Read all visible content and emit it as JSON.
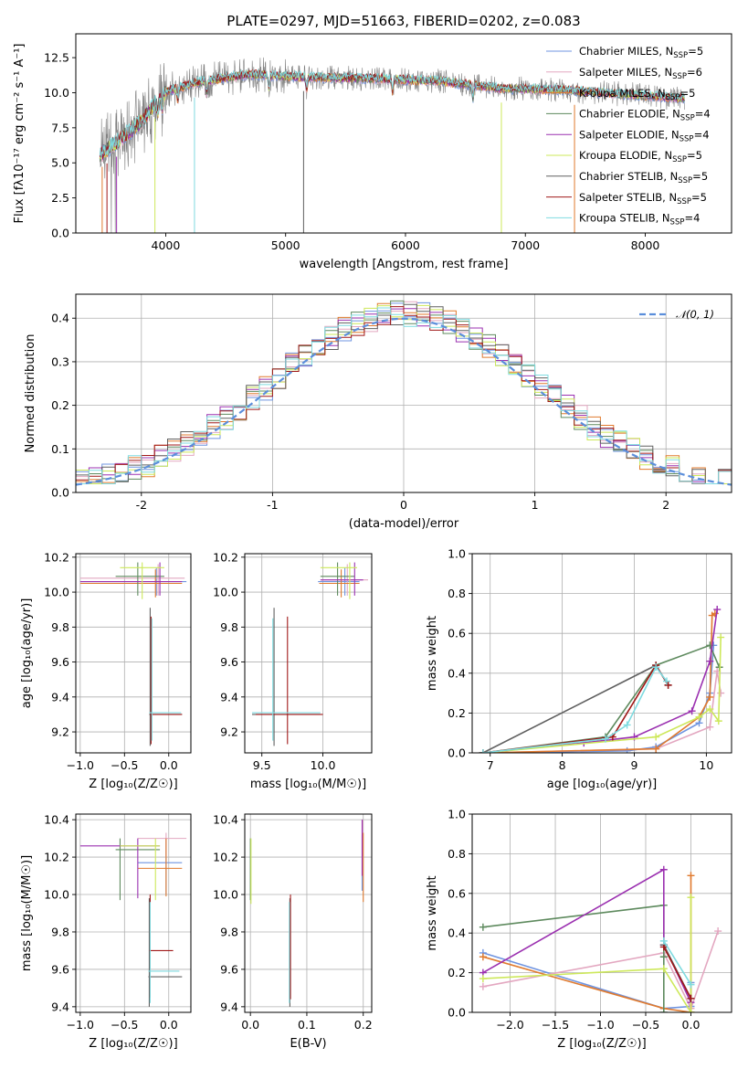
{
  "title": "PLATE=0297, MJD=51663, FIBERID=0202, z=0.083",
  "colors": {
    "Chabrier MILES": "#6f94e0",
    "Salpeter MILES": "#e3a7c0",
    "Kroupa MILES": "#e07a2e",
    "Chabrier ELODIE": "#5e8a5e",
    "Salpeter ELODIE": "#9b30b0",
    "Kroupa ELODIE": "#cde85a",
    "Chabrier STELIB": "#606060",
    "Salpeter STELIB": "#a01818",
    "Kroupa STELIB": "#7fdbe0",
    "normal": "#5b8edb",
    "grid": "#b0b0b0"
  },
  "legend_names": [
    "Chabrier MILES",
    "Salpeter MILES",
    "Kroupa MILES",
    "Chabrier ELODIE",
    "Salpeter ELODIE",
    "Kroupa ELODIE",
    "Chabrier STELIB",
    "Salpeter STELIB",
    "Kroupa STELIB"
  ],
  "legend_nssp": [
    5,
    6,
    5,
    4,
    4,
    5,
    5,
    5,
    4
  ],
  "chart_data": [
    {
      "id": "spectrum",
      "type": "line",
      "title": "PLATE=0297, MJD=51663, FIBERID=0202, z=0.083",
      "xlabel": "wavelength [Angstrom, rest frame]",
      "ylabel": "Flux [fλ10⁻¹⁷ erg cm⁻² s⁻¹ A⁻¹]",
      "xlim": [
        3250,
        8720
      ],
      "ylim": [
        0,
        14.2
      ],
      "xticks": [
        4000,
        5000,
        6000,
        7000,
        8000
      ],
      "yticks": [
        0.0,
        2.5,
        5.0,
        7.5,
        10.0,
        12.5
      ],
      "ytick_labels": [
        "0.0",
        "2.5",
        "5.0",
        "7.5",
        "10.0",
        "12.5"
      ],
      "legend_position": "upper right",
      "data_range": [
        3450,
        8330
      ],
      "model_shape": {
        "wavelength": [
          3450,
          3600,
          3800,
          4000,
          4300,
          4700,
          5200,
          5800,
          6300,
          6800,
          7300,
          7800,
          8330
        ],
        "flux": [
          5.6,
          6.5,
          8.0,
          10.1,
          10.8,
          11.3,
          11.1,
          11.0,
          10.8,
          10.3,
          10.2,
          9.9,
          9.6
        ]
      },
      "absorption_lines": [
        3933,
        3968,
        4101,
        4340,
        4861,
        5175,
        5892,
        6563
      ],
      "dropouts": [
        3470,
        3510,
        3590,
        3910,
        4240,
        5150,
        6800,
        7410
      ]
    },
    {
      "id": "residuals",
      "type": "histogram",
      "xlabel": "(data-model)/error",
      "ylabel": "Normed distribution",
      "xlim": [
        -2.5,
        2.5
      ],
      "ylim": [
        0,
        0.455
      ],
      "xticks": [
        -2,
        -1,
        0,
        1,
        2
      ],
      "yticks": [
        0.0,
        0.1,
        0.2,
        0.3,
        0.4
      ],
      "ytick_labels": [
        "0.0",
        "0.1",
        "0.2",
        "0.3",
        "0.4"
      ],
      "bin_width": 0.1,
      "reference_curve": "𝒩(0, 1)",
      "legend_position": "upper right"
    },
    {
      "id": "age-vs-Z",
      "type": "errorbar",
      "xlabel": "Z [log₁₀(Z/Z☉)]",
      "ylabel": "age  [log₁₀(age/yr)]",
      "xlim": [
        -1.05,
        0.25
      ],
      "ylim": [
        9.08,
        10.22
      ],
      "xticks": [
        -1.0,
        -0.5,
        0.0
      ],
      "xtick_labels": [
        "−1.0",
        "−0.5",
        "0.0"
      ],
      "yticks": [
        9.2,
        9.4,
        9.6,
        9.8,
        10.0,
        10.2
      ],
      "ytick_labels": [
        "9.2",
        "9.4",
        "9.6",
        "9.8",
        "10.0",
        "10.2"
      ],
      "points": [
        {
          "model": "Chabrier MILES",
          "x": -0.14,
          "y": 10.06,
          "x_range": [
            -1.0,
            0.2
          ],
          "y_range": [
            9.98,
            10.14
          ]
        },
        {
          "model": "Salpeter MILES",
          "x": -0.12,
          "y": 10.08,
          "x_range": [
            -1.0,
            0.18
          ],
          "y_range": [
            9.98,
            10.16
          ]
        },
        {
          "model": "Kroupa MILES",
          "x": -0.15,
          "y": 10.05,
          "x_range": [
            -1.0,
            0.15
          ],
          "y_range": [
            9.97,
            10.13
          ]
        },
        {
          "model": "Chabrier ELODIE",
          "x": -0.35,
          "y": 10.09,
          "x_range": [
            -0.6,
            -0.05
          ],
          "y_range": [
            9.98,
            10.17
          ]
        },
        {
          "model": "Salpeter ELODIE",
          "x": -0.1,
          "y": 10.06,
          "x_range": [
            -1.0,
            0.15
          ],
          "y_range": [
            9.98,
            10.17
          ]
        },
        {
          "model": "Kroupa ELODIE",
          "x": -0.3,
          "y": 10.14,
          "x_range": [
            -0.55,
            -0.05
          ],
          "y_range": [
            9.96,
            10.17
          ]
        },
        {
          "model": "Chabrier STELIB",
          "x": -0.21,
          "y": 9.3,
          "x_range": [
            -0.22,
            0.15
          ],
          "y_range": [
            9.12,
            9.91
          ]
        },
        {
          "model": "Salpeter STELIB",
          "x": -0.2,
          "y": 9.3,
          "x_range": [
            -0.21,
            0.15
          ],
          "y_range": [
            9.13,
            9.86
          ]
        },
        {
          "model": "Kroupa STELIB",
          "x": -0.19,
          "y": 9.31,
          "x_range": [
            -0.22,
            0.14
          ],
          "y_range": [
            9.15,
            9.85
          ]
        }
      ]
    },
    {
      "id": "age-vs-mass",
      "type": "errorbar",
      "xlabel": "mass [log₁₀(M/M☉)]",
      "ylabel": "",
      "xlim": [
        9.36,
        10.4
      ],
      "ylim": [
        9.08,
        10.22
      ],
      "xticks": [
        9.5,
        10.0
      ],
      "xtick_labels": [
        "9.5",
        "10.0"
      ],
      "yticks": [
        9.2,
        9.4,
        9.6,
        9.8,
        10.0,
        10.2
      ],
      "ytick_labels": [
        "9.2",
        "9.4",
        "9.6",
        "9.8",
        "10.0",
        "10.2"
      ],
      "points": [
        {
          "model": "Chabrier MILES",
          "x": 10.18,
          "y": 10.06,
          "x_range": [
            9.96,
            10.3
          ],
          "y_range": [
            9.98,
            10.14
          ]
        },
        {
          "model": "Salpeter MILES",
          "x": 10.2,
          "y": 10.07,
          "x_range": [
            9.98,
            10.37
          ],
          "y_range": [
            9.98,
            10.16
          ]
        },
        {
          "model": "Kroupa MILES",
          "x": 10.15,
          "y": 10.05,
          "x_range": [
            9.97,
            10.3
          ],
          "y_range": [
            9.97,
            10.13
          ]
        },
        {
          "model": "Chabrier ELODIE",
          "x": 10.12,
          "y": 10.09,
          "x_range": [
            9.98,
            10.26
          ],
          "y_range": [
            9.98,
            10.17
          ]
        },
        {
          "model": "Salpeter ELODIE",
          "x": 10.26,
          "y": 10.07,
          "x_range": [
            9.98,
            10.33
          ],
          "y_range": [
            9.98,
            10.17
          ]
        },
        {
          "model": "Kroupa ELODIE",
          "x": 10.22,
          "y": 10.14,
          "x_range": [
            9.98,
            10.28
          ],
          "y_range": [
            9.96,
            10.17
          ]
        },
        {
          "model": "Chabrier STELIB",
          "x": 9.6,
          "y": 9.3,
          "x_range": [
            9.42,
            9.98
          ],
          "y_range": [
            9.12,
            9.91
          ]
        },
        {
          "model": "Salpeter STELIB",
          "x": 9.71,
          "y": 9.3,
          "x_range": [
            9.45,
            10.0
          ],
          "y_range": [
            9.13,
            9.86
          ]
        },
        {
          "model": "Kroupa STELIB",
          "x": 9.59,
          "y": 9.31,
          "x_range": [
            9.42,
            9.98
          ],
          "y_range": [
            9.15,
            9.85
          ]
        }
      ]
    },
    {
      "id": "mass-weight-vs-age",
      "type": "line",
      "xlabel": "age  [log₁₀(age/yr)]",
      "ylabel": "mass weight",
      "xlim": [
        6.75,
        10.35
      ],
      "ylim": [
        0,
        1.0
      ],
      "xticks": [
        7,
        8,
        9,
        10
      ],
      "yticks": [
        0.0,
        0.2,
        0.4,
        0.6,
        0.8,
        1.0
      ],
      "ytick_labels": [
        "0.0",
        "0.2",
        "0.4",
        "0.6",
        "0.8",
        "1.0"
      ],
      "series": [
        {
          "name": "Chabrier MILES",
          "x": [
            6.9,
            8.9,
            9.3,
            9.9,
            10.05,
            10.1
          ],
          "y": [
            0.0,
            0.01,
            0.03,
            0.15,
            0.3,
            0.54
          ]
        },
        {
          "name": "Salpeter MILES",
          "x": [
            6.9,
            9.3,
            10.05,
            10.15,
            10.2
          ],
          "y": [
            0.0,
            0.02,
            0.13,
            0.41,
            0.3
          ]
        },
        {
          "name": "Kroupa MILES",
          "x": [
            6.9,
            9.3,
            9.9,
            10.05,
            10.08,
            10.12
          ],
          "y": [
            0.0,
            0.02,
            0.18,
            0.28,
            0.69,
            0.7
          ]
        },
        {
          "name": "Chabrier ELODIE",
          "x": [
            6.9,
            8.6,
            9.3,
            10.05,
            10.18
          ],
          "y": [
            0.0,
            0.08,
            0.44,
            0.54,
            0.43
          ]
        },
        {
          "name": "Salpeter ELODIE",
          "x": [
            6.9,
            8.3,
            9.0,
            9.8,
            10.05,
            10.15
          ],
          "y": [
            0.0,
            0.05,
            0.08,
            0.21,
            0.46,
            0.72
          ]
        },
        {
          "name": "Kroupa ELODIE",
          "x": [
            6.9,
            9.3,
            9.9,
            10.05,
            10.17,
            10.2
          ],
          "y": [
            0.0,
            0.08,
            0.18,
            0.22,
            0.16,
            0.58
          ]
        },
        {
          "name": "Chabrier STELIB",
          "x": [
            6.9,
            9.3,
            9.47
          ],
          "y": [
            0.0,
            0.44,
            0.34
          ]
        },
        {
          "name": "Salpeter STELIB",
          "x": [
            6.9,
            8.7,
            9.3,
            9.47
          ],
          "y": [
            0.0,
            0.08,
            0.44,
            0.34
          ]
        },
        {
          "name": "Kroupa STELIB",
          "x": [
            6.9,
            8.6,
            8.9,
            9.3,
            9.45
          ],
          "y": [
            0.0,
            0.07,
            0.14,
            0.43,
            0.36
          ]
        }
      ]
    },
    {
      "id": "mass-vs-Z",
      "type": "errorbar",
      "xlabel": "Z [log₁₀(Z/Z☉)]",
      "ylabel": "mass [log₁₀(M/M☉)]",
      "xlim": [
        -1.05,
        0.25
      ],
      "ylim": [
        9.37,
        10.43
      ],
      "xticks": [
        -1.0,
        -0.5,
        0.0
      ],
      "xtick_labels": [
        "−1.0",
        "−0.5",
        "0.0"
      ],
      "yticks": [
        9.4,
        9.6,
        9.8,
        10.0,
        10.2,
        10.4
      ],
      "ytick_labels": [
        "9.4",
        "9.6",
        "9.8",
        "10.0",
        "10.2",
        "10.4"
      ],
      "points": [
        {
          "model": "Chabrier MILES",
          "x": -0.03,
          "y": 10.17,
          "x_range": [
            -0.35,
            0.15
          ],
          "y_range": [
            10.0,
            10.3
          ]
        },
        {
          "model": "Salpeter MILES",
          "x": -0.03,
          "y": 10.3,
          "x_range": [
            -0.35,
            0.2
          ],
          "y_range": [
            10.2,
            10.33
          ]
        },
        {
          "model": "Kroupa MILES",
          "x": -0.03,
          "y": 10.14,
          "x_range": [
            -0.35,
            0.15
          ],
          "y_range": [
            9.99,
            10.3
          ]
        },
        {
          "model": "Chabrier ELODIE",
          "x": -0.55,
          "y": 10.24,
          "x_range": [
            -0.6,
            -0.1
          ],
          "y_range": [
            9.97,
            10.3
          ]
        },
        {
          "model": "Salpeter ELODIE",
          "x": -0.35,
          "y": 10.26,
          "x_range": [
            -1.0,
            -0.1
          ],
          "y_range": [
            9.98,
            10.3
          ]
        },
        {
          "model": "Kroupa ELODIE",
          "x": -0.15,
          "y": 10.26,
          "x_range": [
            -0.55,
            -0.1
          ],
          "y_range": [
            9.97,
            10.3
          ]
        },
        {
          "model": "Chabrier STELIB",
          "x": -0.22,
          "y": 9.56,
          "x_range": [
            -0.23,
            0.15
          ],
          "y_range": [
            9.4,
            9.98
          ]
        },
        {
          "model": "Salpeter STELIB",
          "x": -0.21,
          "y": 9.7,
          "x_range": [
            -0.22,
            0.05
          ],
          "y_range": [
            9.45,
            10.0
          ]
        },
        {
          "model": "Kroupa STELIB",
          "x": -0.21,
          "y": 9.59,
          "x_range": [
            -0.23,
            0.12
          ],
          "y_range": [
            9.42,
            9.96
          ]
        }
      ]
    },
    {
      "id": "mass-vs-EBV",
      "type": "errorbar",
      "xlabel": "E(B-V)",
      "ylabel": "",
      "xlim": [
        -0.01,
        0.215
      ],
      "ylim": [
        9.37,
        10.43
      ],
      "xticks": [
        0.0,
        0.1,
        0.2
      ],
      "xtick_labels": [
        "0.0",
        "0.1",
        "0.2"
      ],
      "yticks": [
        9.4,
        9.6,
        9.8,
        10.0,
        10.2,
        10.4
      ],
      "ytick_labels": [
        "9.4",
        "9.6",
        "9.8",
        "10.0",
        "10.2",
        "10.4"
      ],
      "points": [
        {
          "model": "Chabrier MILES",
          "x": 0.198,
          "y": 10.17,
          "y_range": [
            10.02,
            10.32
          ]
        },
        {
          "model": "Salpeter MILES",
          "x": 0.199,
          "y": 10.3,
          "y_range": [
            10.2,
            10.4
          ]
        },
        {
          "model": "Kroupa MILES",
          "x": 0.2,
          "y": 10.14,
          "y_range": [
            9.96,
            10.33
          ]
        },
        {
          "model": "Chabrier ELODIE",
          "x": 0.0,
          "y": 10.24,
          "y_range": [
            9.97,
            10.3
          ]
        },
        {
          "model": "Salpeter ELODIE",
          "x": 0.198,
          "y": 10.26,
          "y_range": [
            10.1,
            10.4
          ]
        },
        {
          "model": "Kroupa ELODIE",
          "x": 0.001,
          "y": 10.26,
          "y_range": [
            9.95,
            10.3
          ]
        },
        {
          "model": "Chabrier STELIB",
          "x": 0.07,
          "y": 9.56,
          "y_range": [
            9.4,
            9.98
          ]
        },
        {
          "model": "Salpeter STELIB",
          "x": 0.071,
          "y": 9.7,
          "y_range": [
            9.44,
            10.0
          ]
        },
        {
          "model": "Kroupa STELIB",
          "x": 0.069,
          "y": 9.59,
          "y_range": [
            9.42,
            9.96
          ]
        }
      ]
    },
    {
      "id": "mass-weight-vs-Z",
      "type": "line",
      "xlabel": "Z [log₁₀(Z/Z☉)]",
      "ylabel": "mass weight",
      "xlim": [
        -2.42,
        0.45
      ],
      "ylim": [
        0,
        1.0
      ],
      "xticks": [
        -2.0,
        -1.5,
        -1.0,
        -0.5,
        0.0
      ],
      "xtick_labels": [
        "−2.0",
        "−1.5",
        "−1.0",
        "−0.5",
        "0.0"
      ],
      "yticks": [
        0.0,
        0.2,
        0.4,
        0.6,
        0.8,
        1.0
      ],
      "ytick_labels": [
        "0.0",
        "0.2",
        "0.4",
        "0.6",
        "0.8",
        "1.0"
      ],
      "series": [
        {
          "name": "Chabrier MILES",
          "x": [
            -2.3,
            -0.3,
            0.0,
            0.0
          ],
          "y": [
            0.3,
            0.02,
            0.03,
            0.15
          ]
        },
        {
          "name": "Salpeter MILES",
          "x": [
            -2.3,
            -0.3,
            0.0,
            0.3
          ],
          "y": [
            0.13,
            0.3,
            0.02,
            0.41
          ]
        },
        {
          "name": "Kroupa MILES",
          "x": [
            -2.3,
            -0.3,
            0.0,
            0.0
          ],
          "y": [
            0.28,
            0.02,
            0.0,
            0.69
          ]
        },
        {
          "name": "Chabrier ELODIE",
          "x": [
            -2.3,
            -0.3,
            -0.3,
            -0.3
          ],
          "y": [
            0.43,
            0.54,
            0.0,
            0.28
          ]
        },
        {
          "name": "Salpeter ELODIE",
          "x": [
            -2.3,
            -0.3,
            -0.3,
            0.0
          ],
          "y": [
            0.2,
            0.72,
            0.34,
            0.05
          ]
        },
        {
          "name": "Kroupa ELODIE",
          "x": [
            -2.3,
            -0.3,
            0.0,
            0.0
          ],
          "y": [
            0.17,
            0.22,
            0.0,
            0.58
          ]
        },
        {
          "name": "Chabrier STELIB",
          "x": [
            -0.3,
            0.0
          ],
          "y": [
            0.34,
            0.07
          ]
        },
        {
          "name": "Salpeter STELIB",
          "x": [
            -0.3,
            0.0
          ],
          "y": [
            0.33,
            0.07
          ]
        },
        {
          "name": "Kroupa STELIB",
          "x": [
            -0.3,
            0.0
          ],
          "y": [
            0.36,
            0.14
          ]
        }
      ]
    }
  ]
}
